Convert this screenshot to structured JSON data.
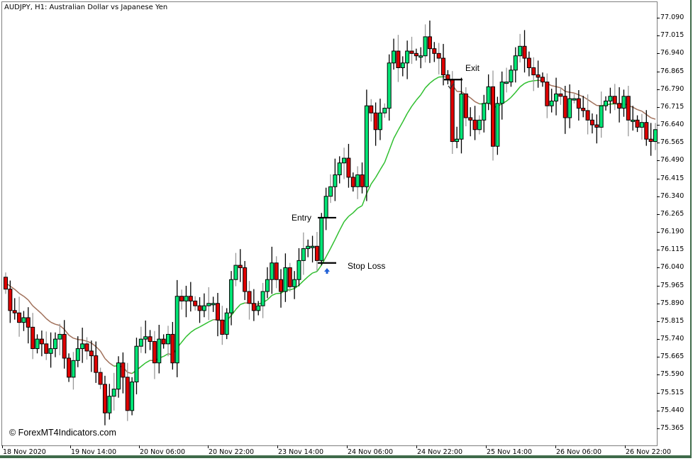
{
  "window": {
    "title": "AUDJPY, H1:  Australian Dollar vs Japanese Yen",
    "watermark": "© ForexMT4Indicators.com"
  },
  "colors": {
    "bull": "#00e676",
    "bear": "#e00000",
    "wick": "#000000",
    "ma_up": "#2fbf2f",
    "ma_down": "#a0705a",
    "frame": "#3f6b4a"
  },
  "annotations": {
    "entry_label": "Entry",
    "stop_loss_label": "Stop Loss",
    "exit_label": "Exit"
  },
  "chart_data": {
    "type": "candlestick",
    "title": "AUDJPY, H1: Australian Dollar vs Japanese Yen",
    "symbol": "AUDJPY",
    "timeframe": "H1",
    "y_axis": {
      "ticks": [
        "77.090",
        "77.015",
        "76.940",
        "76.865",
        "76.790",
        "76.715",
        "76.640",
        "76.565",
        "76.490",
        "76.415",
        "76.340",
        "76.265",
        "76.190",
        "76.115",
        "76.040",
        "75.965",
        "75.890",
        "75.815",
        "75.740",
        "75.665",
        "75.590",
        "75.515",
        "75.440",
        "75.365"
      ],
      "range": [
        75.31,
        77.16
      ]
    },
    "x_axis": {
      "ticks": [
        "18 Nov 2020",
        "19 Nov 14:00",
        "20 Nov 06:00",
        "20 Nov 22:00",
        "23 Nov 14:00",
        "24 Nov 06:00",
        "24 Nov 22:00",
        "25 Nov 14:00",
        "26 Nov 06:00",
        "26 Nov 22:00"
      ]
    },
    "indicator": "Moving average (colored: green rising / brown falling)",
    "levels": {
      "entry": 76.25,
      "stop_loss": 76.06,
      "exit": 76.83
    },
    "candles_close_approx": [
      75.95,
      75.86,
      75.85,
      75.81,
      75.83,
      75.79,
      75.7,
      75.74,
      75.72,
      75.68,
      75.7,
      75.74,
      75.76,
      75.66,
      75.58,
      75.65,
      75.7,
      75.72,
      75.69,
      75.67,
      75.6,
      75.55,
      75.43,
      75.5,
      75.53,
      75.64,
      75.58,
      75.44,
      75.56,
      75.71,
      75.74,
      75.75,
      75.73,
      75.64,
      75.74,
      75.72,
      75.76,
      75.64,
      75.92,
      75.9,
      75.92,
      75.9,
      75.88,
      75.86,
      75.88,
      75.89,
      75.89,
      75.82,
      75.76,
      75.85,
      75.99,
      76.05,
      76.04,
      75.94,
      75.89,
      75.86,
      75.88,
      75.94,
      75.99,
      76.06,
      75.99,
      75.94,
      76.04,
      75.96,
      75.99,
      76.07,
      76.12,
      76.13,
      76.13,
      76.07,
      76.25,
      76.34,
      76.38,
      76.43,
      76.48,
      76.5,
      76.42,
      76.38,
      76.43,
      76.38,
      76.72,
      76.69,
      76.62,
      76.69,
      76.71,
      76.9,
      76.95,
      76.88,
      76.9,
      76.95,
      76.94,
      76.93,
      76.93,
      77.01,
      76.96,
      76.94,
      76.92,
      76.85,
      76.83,
      76.57,
      76.58,
      76.77,
      76.67,
      76.66,
      76.62,
      76.66,
      76.73,
      76.8,
      76.55,
      76.73,
      76.82,
      76.82,
      76.87,
      76.93,
      76.97,
      76.92,
      76.88,
      76.85,
      76.84,
      76.82,
      76.72,
      76.74,
      76.77,
      76.76,
      76.67,
      76.75,
      76.75,
      76.71,
      76.7,
      76.66,
      76.64,
      76.63,
      76.72,
      76.74,
      76.76,
      76.73,
      76.71,
      76.76,
      76.66,
      76.66,
      76.63,
      76.65,
      76.58,
      76.57,
      76.62
    ]
  }
}
